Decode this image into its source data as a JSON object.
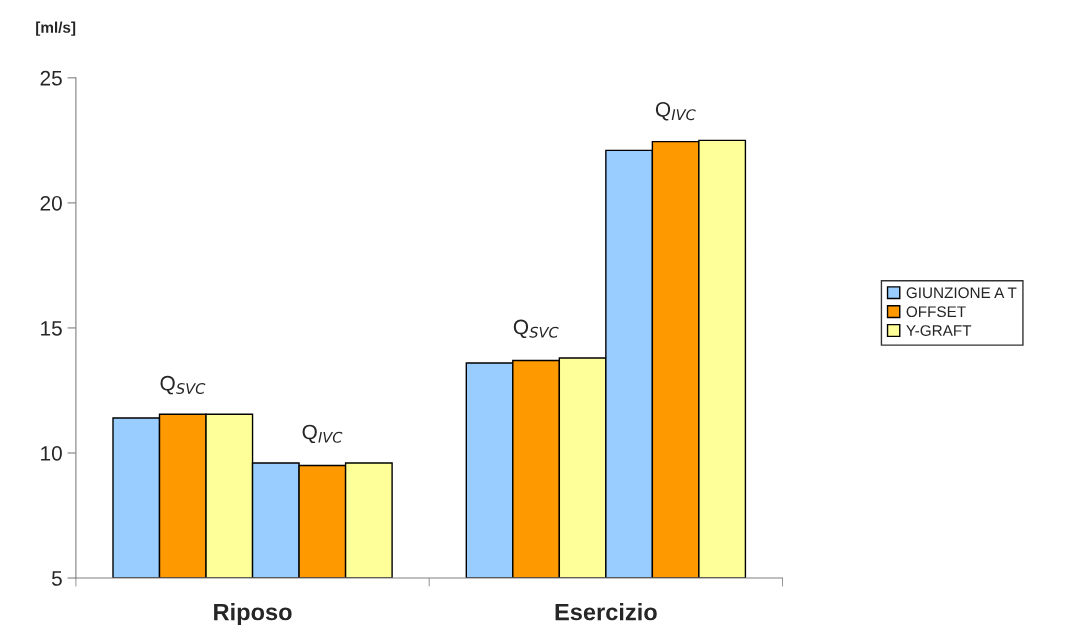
{
  "chart_data": {
    "type": "bar",
    "ylabel": "[ml/s]",
    "categories": [
      "Riposo",
      "Esercizio"
    ],
    "series": [
      {
        "name": "GIUNZIONE A T",
        "color": "#99ccff",
        "values": [
          11.4,
          13.6
        ]
      },
      {
        "name": "OFFSET",
        "color": "#ff9900",
        "values": [
          11.55,
          13.7
        ]
      },
      {
        "name": "Y-GRAFT",
        "color": "#ffff99",
        "values": [
          11.55,
          13.8
        ]
      },
      {
        "color": "#99ccff",
        "values": [
          9.6,
          22.1
        ]
      },
      {
        "color": "#ff9900",
        "values": [
          9.5,
          22.45
        ]
      },
      {
        "color": "#ffff99",
        "values": [
          9.6,
          22.5
        ]
      }
    ],
    "annotations": [
      "Q$_{SVC}$",
      "Q$_{IVC}$",
      "Q$_{SVC}$",
      "Q$_{IVC}$"
    ],
    "ylim": [
      5,
      25
    ],
    "yticks": [
      5,
      10,
      15,
      20,
      25
    ],
    "grid": false,
    "legend": "right"
  }
}
